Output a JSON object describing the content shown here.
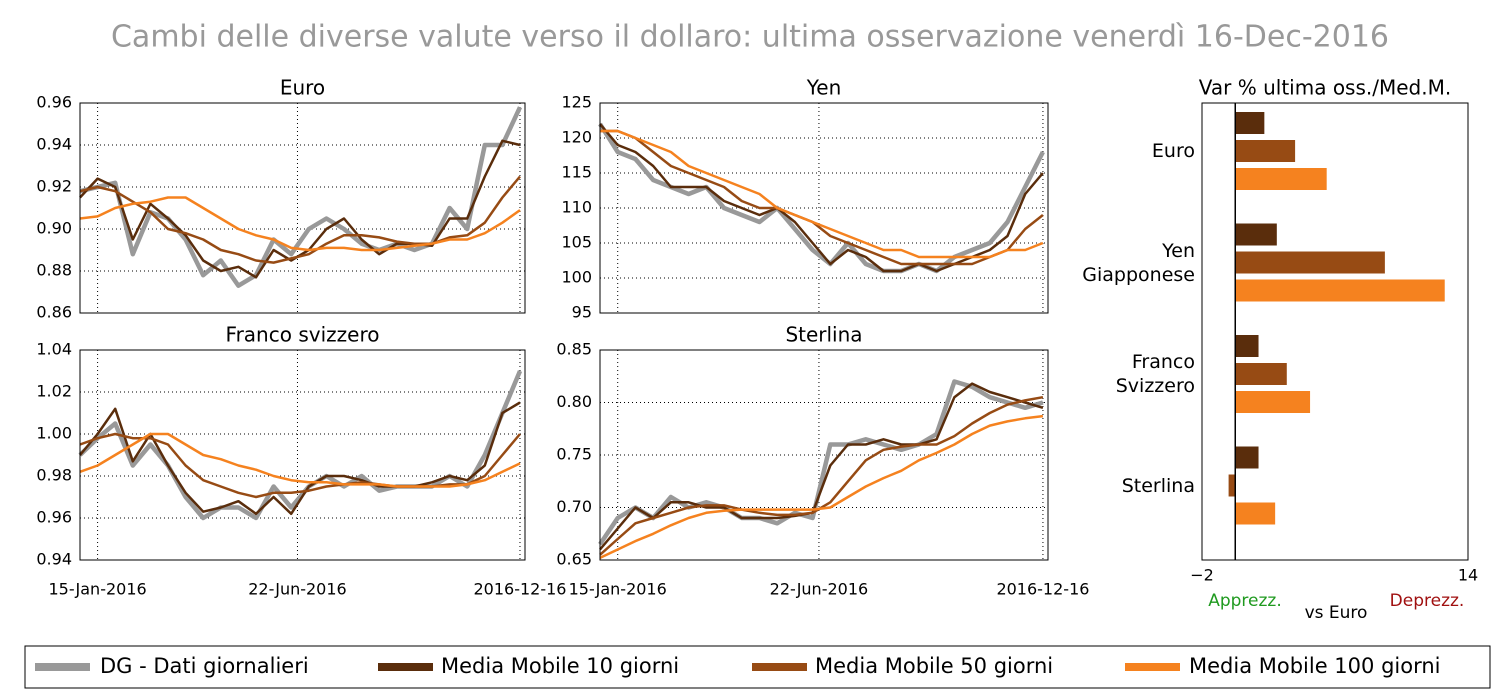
{
  "title": "Cambi delle diverse valute verso il dollaro: ultima osservazione venerdì 16-Dec-2016",
  "chart_data": [
    {
      "type": "line",
      "title": "Euro",
      "x": [
        "2016-01-01",
        "2016-01-15",
        "2016-01-29",
        "2016-02-12",
        "2016-02-26",
        "2016-03-11",
        "2016-03-25",
        "2016-04-08",
        "2016-04-22",
        "2016-05-06",
        "2016-05-20",
        "2016-06-03",
        "2016-06-17",
        "2016-07-01",
        "2016-07-15",
        "2016-07-29",
        "2016-08-12",
        "2016-08-26",
        "2016-09-09",
        "2016-09-23",
        "2016-10-07",
        "2016-10-21",
        "2016-11-04",
        "2016-11-18",
        "2016-12-02",
        "2016-12-16"
      ],
      "series": [
        {
          "name": "DG - Dati giornalieri",
          "color": "#999999",
          "values": [
            0.918,
            0.92,
            0.922,
            0.888,
            0.908,
            0.905,
            0.895,
            0.878,
            0.885,
            0.873,
            0.878,
            0.895,
            0.888,
            0.9,
            0.905,
            0.9,
            0.893,
            0.89,
            0.893,
            0.89,
            0.893,
            0.91,
            0.9,
            0.94,
            0.94,
            0.958
          ]
        },
        {
          "name": "Media Mobile 10 giorni",
          "color": "#5a2d0c",
          "values": [
            0.915,
            0.924,
            0.92,
            0.895,
            0.912,
            0.905,
            0.897,
            0.885,
            0.88,
            0.882,
            0.877,
            0.89,
            0.885,
            0.89,
            0.9,
            0.905,
            0.895,
            0.888,
            0.893,
            0.893,
            0.892,
            0.905,
            0.905,
            0.925,
            0.942,
            0.94
          ]
        },
        {
          "name": "Media Mobile 50 giorni",
          "color": "#974b14",
          "values": [
            0.918,
            0.92,
            0.918,
            0.913,
            0.908,
            0.9,
            0.898,
            0.895,
            0.89,
            0.888,
            0.885,
            0.884,
            0.886,
            0.888,
            0.893,
            0.897,
            0.897,
            0.896,
            0.894,
            0.893,
            0.893,
            0.896,
            0.897,
            0.903,
            0.915,
            0.925
          ]
        },
        {
          "name": "Media Mobile 100 giorni",
          "color": "#f5821f",
          "values": [
            0.905,
            0.906,
            0.91,
            0.912,
            0.913,
            0.915,
            0.915,
            0.91,
            0.905,
            0.9,
            0.897,
            0.895,
            0.891,
            0.89,
            0.891,
            0.891,
            0.89,
            0.89,
            0.891,
            0.892,
            0.893,
            0.895,
            0.895,
            0.898,
            0.903,
            0.909
          ]
        }
      ],
      "xlim": [
        "2016-01-01",
        "2016-12-20"
      ],
      "xticks": [
        "2016-01-15",
        "2016-06-22",
        "2016-12-16"
      ],
      "ylim": [
        0.86,
        0.96
      ],
      "yticks": [
        0.86,
        0.88,
        {
          "value": 0.9,
          "label": "0.90"
        },
        0.92,
        0.94,
        0.96
      ],
      "grid": true
    },
    {
      "type": "line",
      "title": "Yen",
      "x": [
        "2016-01-01",
        "2016-01-15",
        "2016-01-29",
        "2016-02-12",
        "2016-02-26",
        "2016-03-11",
        "2016-03-25",
        "2016-04-08",
        "2016-04-22",
        "2016-05-06",
        "2016-05-20",
        "2016-06-03",
        "2016-06-17",
        "2016-07-01",
        "2016-07-15",
        "2016-07-29",
        "2016-08-12",
        "2016-08-26",
        "2016-09-09",
        "2016-09-23",
        "2016-10-07",
        "2016-10-21",
        "2016-11-04",
        "2016-11-18",
        "2016-12-02",
        "2016-12-16"
      ],
      "series": [
        {
          "name": "DG - Dati giornalieri",
          "color": "#999999",
          "values": [
            122,
            118,
            117,
            114,
            113,
            112,
            113,
            110,
            109,
            108,
            110,
            107,
            104,
            102,
            105,
            102,
            101,
            101,
            102,
            101,
            103,
            104,
            105,
            108,
            113,
            118
          ]
        },
        {
          "name": "Media Mobile 10 giorni",
          "color": "#5a2d0c",
          "values": [
            122,
            119,
            118,
            116,
            113,
            113,
            113,
            111,
            110,
            109,
            110,
            108,
            105,
            102,
            104,
            103,
            101,
            101,
            102,
            101,
            102,
            103,
            104,
            106,
            112,
            115
          ]
        },
        {
          "name": "Media Mobile 50 giorni",
          "color": "#974b14",
          "values": [
            121,
            121,
            120,
            118,
            116,
            115,
            114,
            113,
            111,
            110,
            110,
            109,
            108,
            106,
            105,
            104,
            103,
            102,
            102,
            102,
            102,
            102,
            103,
            104,
            107,
            109
          ]
        },
        {
          "name": "Media Mobile 100 giorni",
          "color": "#f5821f",
          "values": [
            121,
            121,
            120,
            119,
            118,
            116,
            115,
            114,
            113,
            112,
            110,
            109,
            108,
            107,
            106,
            105,
            104,
            104,
            103,
            103,
            103,
            103,
            103,
            104,
            104,
            105
          ]
        }
      ],
      "xlim": [
        "2016-01-01",
        "2016-12-20"
      ],
      "xticks": [
        "2016-01-15",
        "2016-06-22",
        "2016-12-16"
      ],
      "ylim": [
        95,
        125
      ],
      "yticks": [
        95,
        100,
        105,
        110,
        115,
        120,
        125
      ],
      "grid": true
    },
    {
      "type": "line",
      "title": "Franco svizzero",
      "x": [
        "2016-01-01",
        "2016-01-15",
        "2016-01-29",
        "2016-02-12",
        "2016-02-26",
        "2016-03-11",
        "2016-03-25",
        "2016-04-08",
        "2016-04-22",
        "2016-05-06",
        "2016-05-20",
        "2016-06-03",
        "2016-06-17",
        "2016-07-01",
        "2016-07-15",
        "2016-07-29",
        "2016-08-12",
        "2016-08-26",
        "2016-09-09",
        "2016-09-23",
        "2016-10-07",
        "2016-10-21",
        "2016-11-04",
        "2016-11-18",
        "2016-12-02",
        "2016-12-16"
      ],
      "series": [
        {
          "name": "DG - Dati giornalieri",
          "color": "#999999",
          "values": [
            0.99,
            0.998,
            1.005,
            0.985,
            0.995,
            0.985,
            0.97,
            0.96,
            0.965,
            0.965,
            0.96,
            0.975,
            0.965,
            0.975,
            0.98,
            0.975,
            0.98,
            0.973,
            0.975,
            0.975,
            0.975,
            0.98,
            0.975,
            0.99,
            1.01,
            1.03
          ]
        },
        {
          "name": "Media Mobile 10 giorni",
          "color": "#5a2d0c",
          "values": [
            0.99,
            1.0,
            1.012,
            0.987,
            1.0,
            0.985,
            0.972,
            0.963,
            0.965,
            0.968,
            0.962,
            0.97,
            0.962,
            0.975,
            0.98,
            0.98,
            0.978,
            0.975,
            0.975,
            0.975,
            0.977,
            0.98,
            0.978,
            0.985,
            1.01,
            1.015
          ]
        },
        {
          "name": "Media Mobile 50 giorni",
          "color": "#974b14",
          "values": [
            0.995,
            0.998,
            1.0,
            0.998,
            0.998,
            0.995,
            0.985,
            0.978,
            0.975,
            0.972,
            0.97,
            0.972,
            0.972,
            0.973,
            0.975,
            0.976,
            0.977,
            0.976,
            0.975,
            0.975,
            0.975,
            0.976,
            0.976,
            0.98,
            0.99,
            1.0
          ]
        },
        {
          "name": "Media Mobile 100 giorni",
          "color": "#f5821f",
          "values": [
            0.982,
            0.985,
            0.99,
            0.995,
            1.0,
            1.0,
            0.995,
            0.99,
            0.988,
            0.985,
            0.983,
            0.98,
            0.978,
            0.977,
            0.977,
            0.976,
            0.976,
            0.976,
            0.975,
            0.975,
            0.975,
            0.975,
            0.976,
            0.978,
            0.982,
            0.986
          ]
        }
      ],
      "xlim": [
        "2016-01-01",
        "2016-12-20"
      ],
      "xticks": [
        {
          "value": "2016-01-15",
          "label": "15-Jan-2016"
        },
        {
          "value": "2016-06-22",
          "label": "22-Jun-2016"
        },
        "2016-12-16"
      ],
      "ylim": [
        0.94,
        1.04
      ],
      "yticks": [
        0.94,
        0.96,
        0.98,
        {
          "value": 1,
          "label": "1.00"
        },
        1.02,
        1.04
      ],
      "grid": true
    },
    {
      "type": "line",
      "title": "Sterlina",
      "x": [
        "2016-01-01",
        "2016-01-15",
        "2016-01-29",
        "2016-02-12",
        "2016-02-26",
        "2016-03-11",
        "2016-03-25",
        "2016-04-08",
        "2016-04-22",
        "2016-05-06",
        "2016-05-20",
        "2016-06-03",
        "2016-06-17",
        "2016-07-01",
        "2016-07-15",
        "2016-07-29",
        "2016-08-12",
        "2016-08-26",
        "2016-09-09",
        "2016-09-23",
        "2016-10-07",
        "2016-10-21",
        "2016-11-04",
        "2016-11-18",
        "2016-12-02",
        "2016-12-16"
      ],
      "series": [
        {
          "name": "DG - Dati giornalieri",
          "color": "#999999",
          "values": [
            0.665,
            0.69,
            0.7,
            0.69,
            0.71,
            0.7,
            0.705,
            0.7,
            0.69,
            0.69,
            0.685,
            0.695,
            0.69,
            0.76,
            0.76,
            0.765,
            0.76,
            0.755,
            0.76,
            0.77,
            0.82,
            0.815,
            0.805,
            0.8,
            0.795,
            0.8
          ]
        },
        {
          "name": "Media Mobile 10 giorni",
          "color": "#5a2d0c",
          "values": [
            0.66,
            0.68,
            0.7,
            0.69,
            0.705,
            0.705,
            0.7,
            0.7,
            0.69,
            0.69,
            0.69,
            0.692,
            0.695,
            0.74,
            0.76,
            0.76,
            0.765,
            0.76,
            0.76,
            0.765,
            0.805,
            0.818,
            0.81,
            0.805,
            0.8,
            0.795
          ]
        },
        {
          "name": "Media Mobile 50 giorni",
          "color": "#974b14",
          "values": [
            0.655,
            0.67,
            0.685,
            0.69,
            0.695,
            0.7,
            0.702,
            0.702,
            0.698,
            0.695,
            0.693,
            0.693,
            0.695,
            0.705,
            0.725,
            0.745,
            0.755,
            0.758,
            0.76,
            0.76,
            0.768,
            0.78,
            0.79,
            0.798,
            0.802,
            0.805
          ]
        },
        {
          "name": "Media Mobile 100 giorni",
          "color": "#f5821f",
          "values": [
            0.652,
            0.66,
            0.668,
            0.675,
            0.683,
            0.69,
            0.695,
            0.697,
            0.698,
            0.698,
            0.698,
            0.698,
            0.698,
            0.7,
            0.71,
            0.72,
            0.728,
            0.735,
            0.745,
            0.752,
            0.76,
            0.77,
            0.778,
            0.782,
            0.785,
            0.787
          ]
        }
      ],
      "xlim": [
        "2016-01-01",
        "2016-12-20"
      ],
      "xticks": [
        {
          "value": "2016-01-15",
          "label": "15-Jan-2016"
        },
        {
          "value": "2016-06-22",
          "label": "22-Jun-2016"
        },
        "2016-12-16"
      ],
      "ylim": [
        0.65,
        0.85
      ],
      "yticks": [
        0.65,
        {
          "value": 0.7,
          "label": "0.70"
        },
        0.75,
        {
          "value": 0.8,
          "label": "0.80"
        },
        0.85
      ],
      "grid": true
    },
    {
      "type": "hbar",
      "title": "Var % ultima oss./Med.M.",
      "categories": [
        "Euro",
        "Yen Giapponese",
        "Franco Svizzero",
        "Sterlina"
      ],
      "series": [
        {
          "name": "Media Mobile 10 giorni",
          "color": "#5a2d0c",
          "values": [
            1.75,
            2.5,
            1.4,
            1.4
          ]
        },
        {
          "name": "Media Mobile 50 giorni",
          "color": "#974b14",
          "values": [
            3.6,
            9.0,
            3.1,
            -0.4
          ]
        },
        {
          "name": "Media Mobile 100 giorni",
          "color": "#f5821f",
          "values": [
            5.5,
            12.6,
            4.5,
            2.4
          ]
        }
      ],
      "xlim": [
        -2,
        14
      ],
      "xticks": [
        {
          "value": -2,
          "label": "−2"
        },
        14
      ],
      "annotations": [
        "Apprezz.",
        "vs Euro",
        "Deprezz."
      ]
    }
  ]
}
